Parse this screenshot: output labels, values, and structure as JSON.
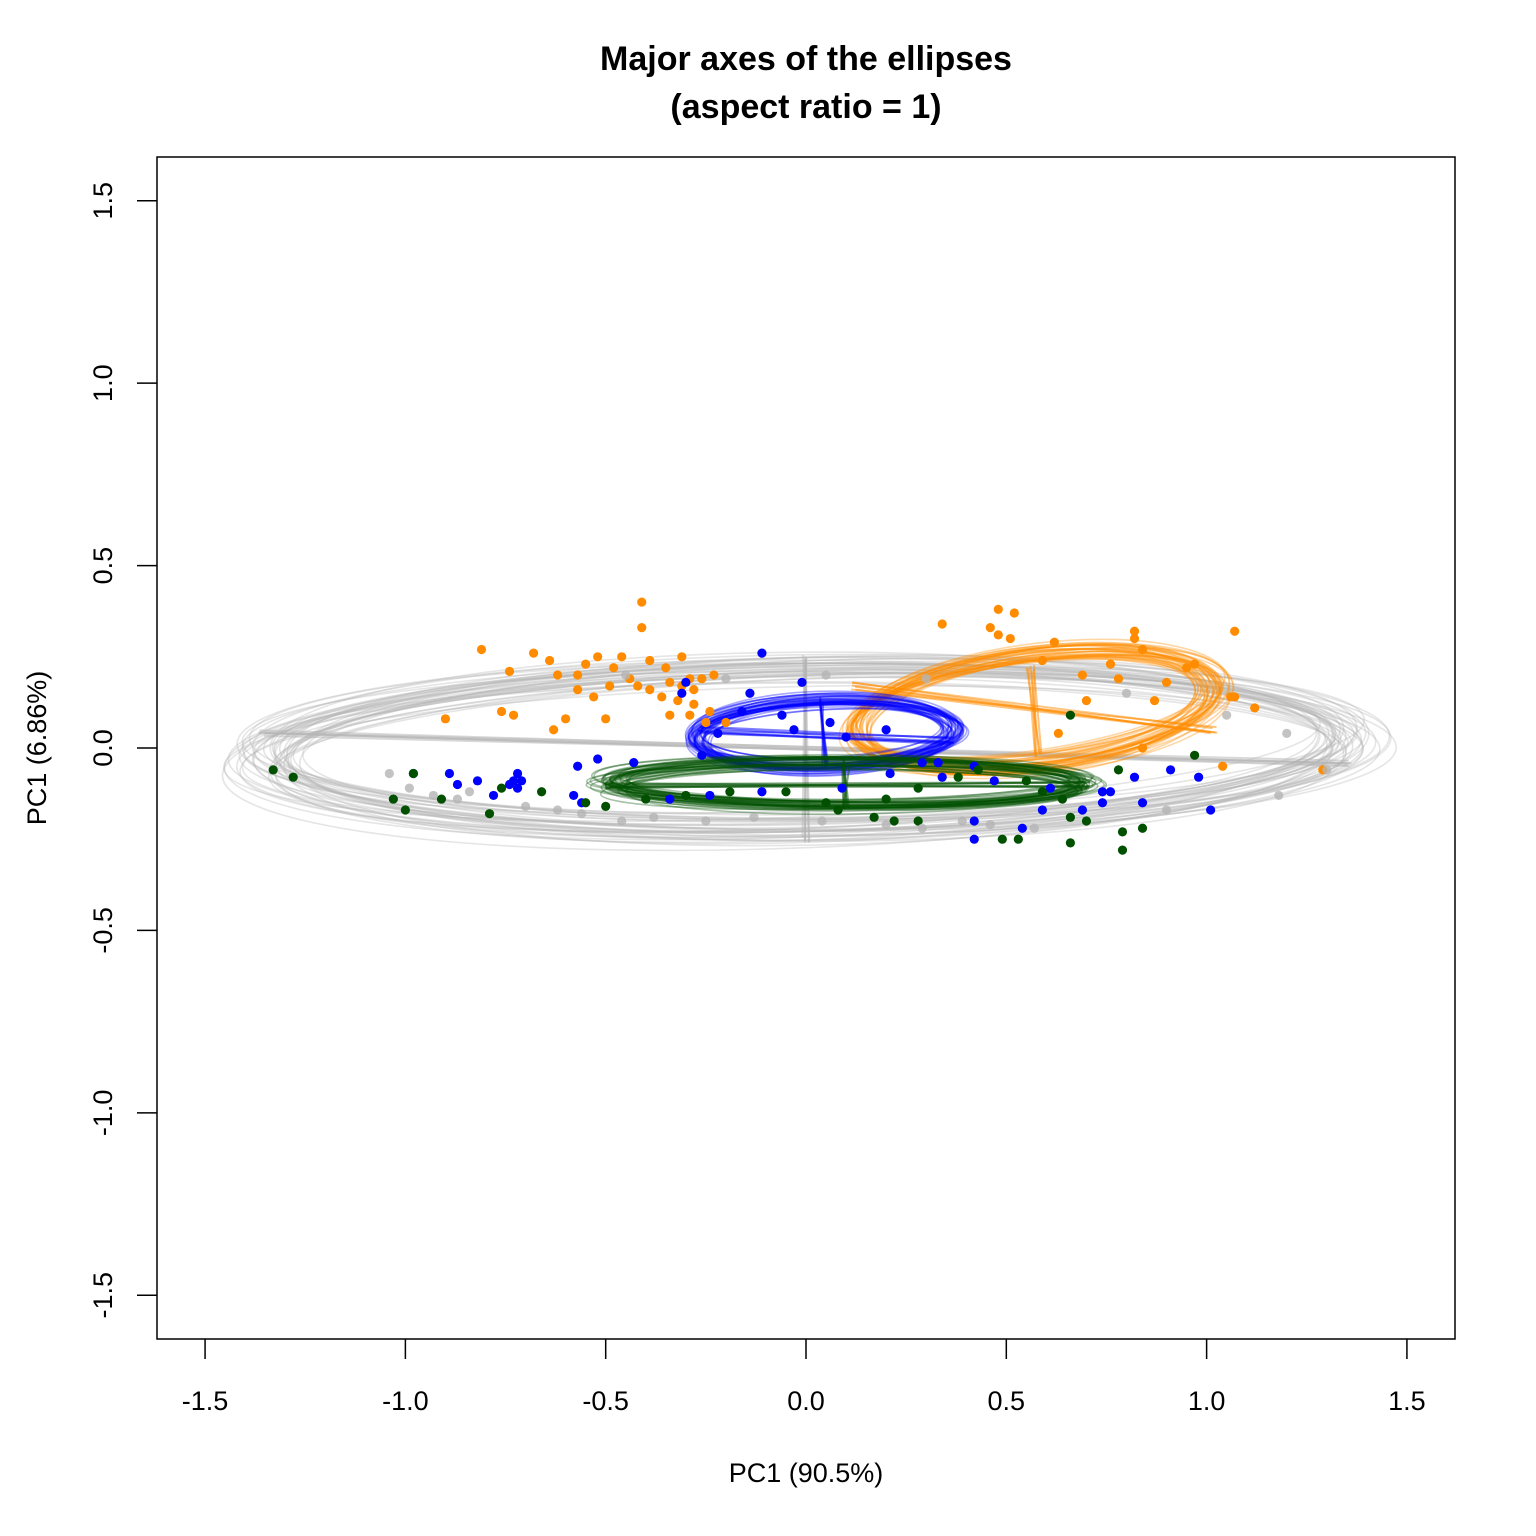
{
  "chart_data": {
    "type": "scatter",
    "title": "Major axes of the ellipses",
    "subtitle": "(aspect ratio = 1)",
    "xlabel": "PC1 (90.5%)",
    "ylabel": "PC1 (6.86%)",
    "xlim": [
      -1.62,
      1.62
    ],
    "ylim": [
      -1.62,
      1.62
    ],
    "xticks": [
      {
        "value": -1.5,
        "label": "-1.5"
      },
      {
        "value": -1.0,
        "label": "-1.0"
      },
      {
        "value": -0.5,
        "label": "-0.5"
      },
      {
        "value": 0.0,
        "label": "0.0"
      },
      {
        "value": 0.5,
        "label": "0.5"
      },
      {
        "value": 1.0,
        "label": "1.0"
      },
      {
        "value": 1.5,
        "label": "1.5"
      }
    ],
    "yticks": [
      {
        "value": -1.5,
        "label": "-1.5"
      },
      {
        "value": -1.0,
        "label": "-1.0"
      },
      {
        "value": -0.5,
        "label": "-0.5"
      },
      {
        "value": 0.0,
        "label": "0.0"
      },
      {
        "value": 0.5,
        "label": "0.5"
      },
      {
        "value": 1.0,
        "label": "1.0"
      },
      {
        "value": 1.5,
        "label": "1.5"
      }
    ],
    "grid": false,
    "colors": {
      "grey": "#b4b4b4",
      "orange": "#ff8c00",
      "blue": "#0000ff",
      "green": "#005000"
    },
    "ellipse_groups": [
      {
        "color": "grey",
        "cx": 0.0,
        "cy": 0.0,
        "a": 1.36,
        "b": 0.22,
        "angle_deg": -1.0,
        "count": 40,
        "jitter": 0.04,
        "major_axis": [
          [
            -1.36,
            0.04
          ],
          [
            1.36,
            -0.04
          ]
        ],
        "minor_axis": [
          [
            0.0,
            0.25
          ],
          [
            0.0,
            -0.25
          ]
        ]
      },
      {
        "color": "orange",
        "cx": 0.57,
        "cy": 0.11,
        "a": 0.45,
        "b": 0.15,
        "angle_deg": -7.0,
        "count": 40,
        "jitter": 0.03,
        "major_axis": [
          [
            0.12,
            0.17
          ],
          [
            1.02,
            0.05
          ]
        ],
        "minor_axis": [
          [
            0.56,
            0.22
          ],
          [
            0.58,
            -0.02
          ]
        ]
      },
      {
        "color": "blue",
        "cx": 0.05,
        "cy": 0.04,
        "a": 0.32,
        "b": 0.09,
        "angle_deg": -2.0,
        "count": 40,
        "jitter": 0.025,
        "major_axis": [
          [
            -0.27,
            0.05
          ],
          [
            0.37,
            0.02
          ]
        ],
        "minor_axis": [
          [
            0.04,
            0.13
          ],
          [
            0.05,
            -0.05
          ]
        ]
      },
      {
        "color": "green",
        "cx": 0.1,
        "cy": -0.1,
        "a": 0.6,
        "b": 0.06,
        "angle_deg": 0.0,
        "count": 40,
        "jitter": 0.025,
        "major_axis": [
          [
            -0.5,
            -0.1
          ],
          [
            0.7,
            -0.1
          ]
        ],
        "minor_axis": [
          [
            0.1,
            -0.04
          ],
          [
            0.1,
            -0.16
          ]
        ]
      }
    ],
    "series": [
      {
        "color": "orange",
        "points": [
          [
            -0.41,
            0.4
          ],
          [
            -0.41,
            0.33
          ],
          [
            -0.81,
            0.27
          ],
          [
            -0.68,
            0.26
          ],
          [
            -0.52,
            0.25
          ],
          [
            -0.46,
            0.25
          ],
          [
            -0.39,
            0.24
          ],
          [
            -0.31,
            0.25
          ],
          [
            -0.64,
            0.24
          ],
          [
            -0.55,
            0.23
          ],
          [
            -0.48,
            0.22
          ],
          [
            -0.35,
            0.22
          ],
          [
            -0.74,
            0.21
          ],
          [
            -0.62,
            0.2
          ],
          [
            -0.57,
            0.2
          ],
          [
            -0.44,
            0.19
          ],
          [
            -0.29,
            0.19
          ],
          [
            -0.26,
            0.19
          ],
          [
            -0.23,
            0.2
          ],
          [
            -0.34,
            0.18
          ],
          [
            -0.31,
            0.17
          ],
          [
            -0.28,
            0.16
          ],
          [
            -0.57,
            0.16
          ],
          [
            -0.49,
            0.17
          ],
          [
            -0.42,
            0.17
          ],
          [
            -0.39,
            0.16
          ],
          [
            -0.53,
            0.14
          ],
          [
            -0.36,
            0.14
          ],
          [
            -0.32,
            0.13
          ],
          [
            -0.28,
            0.12
          ],
          [
            -0.24,
            0.1
          ],
          [
            -0.76,
            0.1
          ],
          [
            -0.73,
            0.09
          ],
          [
            -0.6,
            0.08
          ],
          [
            -0.34,
            0.09
          ],
          [
            -0.29,
            0.09
          ],
          [
            -0.25,
            0.07
          ],
          [
            -0.9,
            0.08
          ],
          [
            -0.5,
            0.08
          ],
          [
            -0.2,
            0.07
          ],
          [
            -0.63,
            0.05
          ],
          [
            0.48,
            0.38
          ],
          [
            0.52,
            0.37
          ],
          [
            0.34,
            0.34
          ],
          [
            0.46,
            0.33
          ],
          [
            0.48,
            0.31
          ],
          [
            0.51,
            0.3
          ],
          [
            0.62,
            0.29
          ],
          [
            0.82,
            0.32
          ],
          [
            0.82,
            0.3
          ],
          [
            1.07,
            0.32
          ],
          [
            0.84,
            0.27
          ],
          [
            0.59,
            0.24
          ],
          [
            0.76,
            0.23
          ],
          [
            0.97,
            0.23
          ],
          [
            0.95,
            0.22
          ],
          [
            0.69,
            0.2
          ],
          [
            0.78,
            0.19
          ],
          [
            0.9,
            0.18
          ],
          [
            1.07,
            0.14
          ],
          [
            1.06,
            0.14
          ],
          [
            0.7,
            0.13
          ],
          [
            0.87,
            0.13
          ],
          [
            1.12,
            0.11
          ],
          [
            0.63,
            0.04
          ],
          [
            0.84,
            0.0
          ],
          [
            1.04,
            -0.05
          ],
          [
            1.29,
            -0.06
          ]
        ]
      },
      {
        "color": "blue",
        "points": [
          [
            -0.11,
            0.26
          ],
          [
            -0.14,
            0.15
          ],
          [
            -0.3,
            0.18
          ],
          [
            -0.31,
            0.15
          ],
          [
            -0.01,
            0.18
          ],
          [
            -0.16,
            0.1
          ],
          [
            -0.06,
            0.09
          ],
          [
            0.06,
            0.07
          ],
          [
            -0.03,
            0.05
          ],
          [
            0.1,
            0.03
          ],
          [
            0.2,
            0.05
          ],
          [
            -0.22,
            0.04
          ],
          [
            -0.26,
            -0.02
          ],
          [
            -0.43,
            -0.04
          ],
          [
            -0.52,
            -0.03
          ],
          [
            -0.57,
            -0.05
          ],
          [
            -0.72,
            -0.07
          ],
          [
            -0.73,
            -0.09
          ],
          [
            -0.74,
            -0.1
          ],
          [
            -0.71,
            -0.09
          ],
          [
            -0.82,
            -0.09
          ],
          [
            -0.89,
            -0.07
          ],
          [
            -0.98,
            -0.07
          ],
          [
            -0.87,
            -0.1
          ],
          [
            -0.72,
            -0.11
          ],
          [
            -0.78,
            -0.13
          ],
          [
            -0.58,
            -0.13
          ],
          [
            -0.56,
            -0.15
          ],
          [
            -0.34,
            -0.14
          ],
          [
            -0.24,
            -0.13
          ],
          [
            -0.11,
            -0.12
          ],
          [
            0.09,
            -0.11
          ],
          [
            0.21,
            -0.07
          ],
          [
            0.29,
            -0.04
          ],
          [
            0.33,
            -0.04
          ],
          [
            0.42,
            -0.05
          ],
          [
            0.34,
            -0.08
          ],
          [
            0.47,
            -0.09
          ],
          [
            0.61,
            -0.11
          ],
          [
            0.74,
            -0.12
          ],
          [
            0.76,
            -0.12
          ],
          [
            0.82,
            -0.08
          ],
          [
            0.91,
            -0.06
          ],
          [
            0.98,
            -0.08
          ],
          [
            1.01,
            -0.17
          ],
          [
            0.84,
            -0.15
          ],
          [
            0.74,
            -0.15
          ],
          [
            0.69,
            -0.17
          ],
          [
            0.59,
            -0.17
          ],
          [
            0.42,
            -0.2
          ],
          [
            0.42,
            -0.25
          ],
          [
            0.54,
            -0.22
          ]
        ]
      },
      {
        "color": "green",
        "points": [
          [
            -1.33,
            -0.06
          ],
          [
            -1.28,
            -0.08
          ],
          [
            -1.0,
            -0.17
          ],
          [
            -1.03,
            -0.14
          ],
          [
            -0.98,
            -0.07
          ],
          [
            -0.91,
            -0.14
          ],
          [
            -0.79,
            -0.18
          ],
          [
            -0.76,
            -0.11
          ],
          [
            -0.66,
            -0.12
          ],
          [
            -0.55,
            -0.15
          ],
          [
            -0.5,
            -0.16
          ],
          [
            -0.4,
            -0.14
          ],
          [
            -0.3,
            -0.13
          ],
          [
            -0.19,
            -0.12
          ],
          [
            -0.05,
            -0.12
          ],
          [
            0.05,
            -0.15
          ],
          [
            0.17,
            -0.19
          ],
          [
            0.2,
            -0.14
          ],
          [
            0.28,
            -0.11
          ],
          [
            0.38,
            -0.08
          ],
          [
            0.43,
            -0.06
          ],
          [
            0.55,
            -0.09
          ],
          [
            0.59,
            -0.12
          ],
          [
            0.64,
            -0.14
          ],
          [
            0.66,
            -0.19
          ],
          [
            0.7,
            -0.2
          ],
          [
            0.79,
            -0.23
          ],
          [
            0.79,
            -0.28
          ],
          [
            0.84,
            -0.22
          ],
          [
            0.66,
            -0.26
          ],
          [
            0.53,
            -0.25
          ],
          [
            0.49,
            -0.25
          ],
          [
            0.28,
            -0.2
          ],
          [
            0.22,
            -0.2
          ],
          [
            0.08,
            -0.17
          ],
          [
            0.66,
            0.09
          ],
          [
            0.78,
            -0.06
          ],
          [
            0.97,
            -0.02
          ]
        ]
      },
      {
        "color": "grey",
        "points": [
          [
            -1.04,
            -0.07
          ],
          [
            -0.99,
            -0.11
          ],
          [
            -0.93,
            -0.13
          ],
          [
            -0.87,
            -0.14
          ],
          [
            -0.84,
            -0.12
          ],
          [
            -0.7,
            -0.16
          ],
          [
            -0.62,
            -0.17
          ],
          [
            -0.56,
            -0.18
          ],
          [
            -0.46,
            -0.2
          ],
          [
            -0.38,
            -0.19
          ],
          [
            -0.25,
            -0.2
          ],
          [
            -0.13,
            -0.19
          ],
          [
            0.04,
            -0.2
          ],
          [
            0.2,
            -0.21
          ],
          [
            0.29,
            -0.22
          ],
          [
            0.39,
            -0.2
          ],
          [
            0.46,
            -0.21
          ],
          [
            0.57,
            -0.22
          ],
          [
            0.9,
            -0.17
          ],
          [
            1.18,
            -0.13
          ],
          [
            1.3,
            -0.06
          ],
          [
            -0.45,
            0.2
          ],
          [
            -0.2,
            0.19
          ],
          [
            0.05,
            0.2
          ],
          [
            0.3,
            0.19
          ],
          [
            0.8,
            0.15
          ],
          [
            1.05,
            0.09
          ],
          [
            1.2,
            0.04
          ]
        ]
      }
    ]
  }
}
